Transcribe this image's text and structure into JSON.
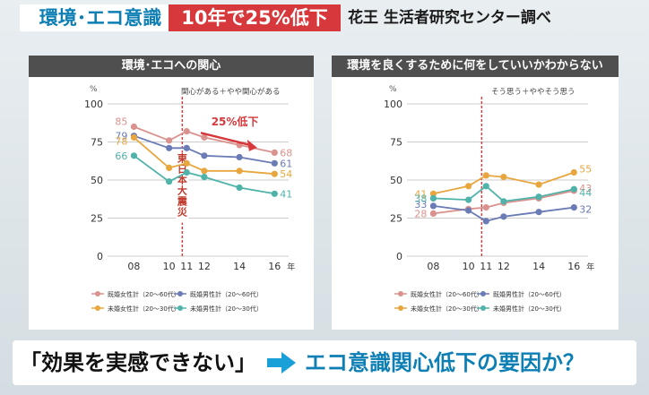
{
  "headline": {
    "title_a": "環境･エコ意識",
    "title_b": "10年で25%低下",
    "source": "花王 生活者研究センター調べ"
  },
  "footer": {
    "left": "「効果を実感できない」",
    "right": "エコ意識関心低下の要因か？"
  },
  "colors": {
    "female_married": "#d9928d",
    "male_married": "#6b7bb5",
    "female_single": "#e8a63f",
    "male_single": "#4fb3a9",
    "accent_red": "#d6383b"
  },
  "chart_data": [
    {
      "type": "line",
      "title": "環境･エコへの関心",
      "subtitle": "関心がある＋やや関心がある",
      "y_unit": "%",
      "x_unit": "年",
      "ylim": [
        0,
        100
      ],
      "yticks": [
        0,
        25,
        50,
        75,
        100
      ],
      "xlim": [
        6.5,
        16.8
      ],
      "xticks": [
        8,
        10,
        11,
        12,
        14,
        16
      ],
      "xtick_labels": [
        "08",
        "10",
        "11",
        "12",
        "14",
        "16"
      ],
      "grid": true,
      "legend_position": "bottom",
      "x": [
        8,
        10,
        11,
        12,
        14,
        16
      ],
      "series": [
        {
          "name": "既婚女性計（20〜60代）",
          "color_key": "female_married",
          "values": [
            85,
            76,
            82,
            78,
            73,
            68
          ],
          "start_label": "85",
          "end_label": "68"
        },
        {
          "name": "既婚男性計（20〜60代）",
          "color_key": "male_married",
          "values": [
            79,
            71,
            71,
            66,
            65,
            61
          ],
          "start_label": "79",
          "end_label": "61"
        },
        {
          "name": "未婚女性計（20〜30代）",
          "color_key": "female_single",
          "values": [
            78,
            58,
            61,
            56,
            56,
            54
          ],
          "start_label": "78",
          "end_label": "54"
        },
        {
          "name": "未婚男性計（20〜30代）",
          "color_key": "male_single",
          "values": [
            66,
            49,
            55,
            52,
            45,
            41
          ],
          "start_label": "66",
          "end_label": "41"
        }
      ],
      "annotations": {
        "event_label": "東日本大震災",
        "event_x": 10.75,
        "callout": "25%低下"
      }
    },
    {
      "type": "line",
      "title": "環境を良くするために何をしていいかわからない",
      "subtitle": "そう思う＋ややそう思う",
      "y_unit": "%",
      "x_unit": "年",
      "ylim": [
        0,
        100
      ],
      "yticks": [
        0,
        25,
        50,
        75,
        100
      ],
      "xlim": [
        6.5,
        16.8
      ],
      "xticks": [
        8,
        10,
        11,
        12,
        14,
        16
      ],
      "xtick_labels": [
        "08",
        "10",
        "11",
        "12",
        "14",
        "16"
      ],
      "grid": true,
      "legend_position": "bottom",
      "x": [
        8,
        10,
        11,
        12,
        14,
        16
      ],
      "series": [
        {
          "name": "既婚女性計（20〜60代）",
          "color_key": "female_married",
          "values": [
            28,
            31,
            32,
            35,
            38,
            43
          ],
          "start_label": "28",
          "end_label": "43"
        },
        {
          "name": "既婚男性計（20〜60代）",
          "color_key": "male_married",
          "values": [
            33,
            30,
            23,
            26,
            29,
            32
          ],
          "start_label": "33",
          "end_label": "32"
        },
        {
          "name": "未婚女性計（20〜30代）",
          "color_key": "female_single",
          "values": [
            41,
            46,
            53,
            52,
            47,
            55
          ],
          "start_label": "41",
          "end_label": "55"
        },
        {
          "name": "未婚男性計（20〜30代）",
          "color_key": "male_single",
          "values": [
            38,
            37,
            46,
            36,
            39,
            44
          ],
          "start_label": "38",
          "end_label": "44"
        }
      ],
      "annotations": {
        "event_x": 10.75
      }
    }
  ]
}
